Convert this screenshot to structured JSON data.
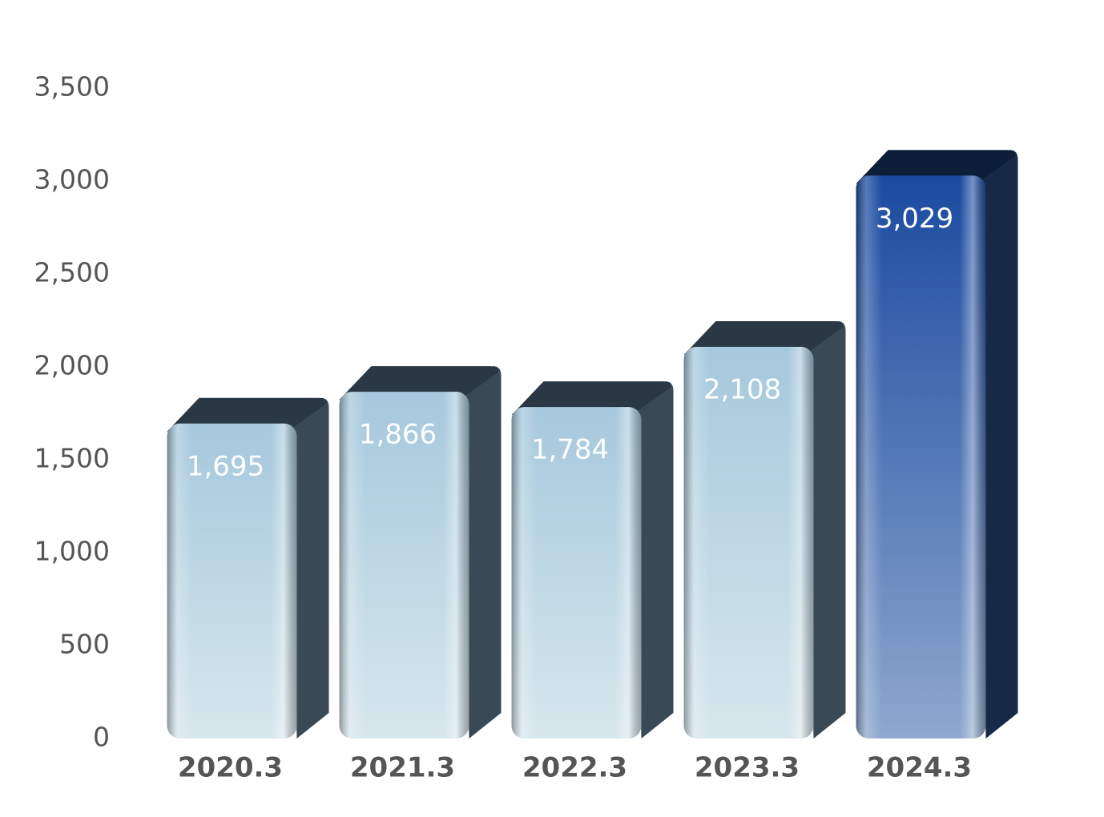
{
  "chart_data": {
    "type": "bar",
    "categories": [
      "2020.3",
      "2021.3",
      "2022.3",
      "2023.3",
      "2024.3"
    ],
    "values": [
      1695,
      1866,
      1784,
      2108,
      3029
    ],
    "value_labels": [
      "1,695",
      "1,866",
      "1,784",
      "2,108",
      "3,029"
    ],
    "colors": [
      "#a6c8dc",
      "#a6c8dc",
      "#a6c8dc",
      "#a6c8dc",
      "#1b4aa0"
    ],
    "ylim": [
      0,
      3500
    ],
    "yticks": [
      0,
      500,
      {
        "value": 1000,
        "label": "1,000"
      },
      {
        "value": 1500,
        "label": "1,500"
      },
      {
        "value": 2000,
        "label": "2,000"
      },
      {
        "value": 2500,
        "label": "2,500"
      },
      {
        "value": 3000,
        "label": "3,000"
      },
      {
        "value": 3500,
        "label": "3,500"
      }
    ],
    "grid": false
  }
}
